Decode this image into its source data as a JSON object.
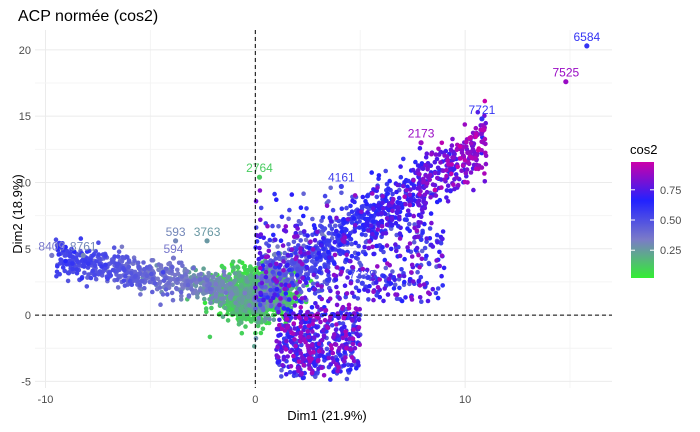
{
  "chart_data": {
    "type": "scatter",
    "title": "ACP normée (cos2)",
    "xlabel": "Dim1 (21.9%)",
    "ylabel": "Dim2 (18.9%)",
    "xlim": [
      -10.5,
      17
    ],
    "ylim": [
      -5.5,
      21.5
    ],
    "x_ticks": [
      -10,
      0,
      10
    ],
    "y_ticks": [
      -5,
      0,
      5,
      10,
      15,
      20
    ],
    "grid": true,
    "reference_lines": {
      "x": 0,
      "y": 0,
      "style": "dashed"
    },
    "color_variable": "cos2",
    "legend": {
      "title": "cos2",
      "position": "right",
      "ticks": [
        "0.25",
        "0.50",
        "0.75"
      ],
      "gradient": [
        "#33ee33",
        "#7b7bc8",
        "#2222ff",
        "#cc00aa"
      ]
    },
    "labeled_points": [
      {
        "label": "6584",
        "x": 15.8,
        "y": 20.3,
        "cos2": 0.6
      },
      {
        "label": "7525",
        "x": 14.8,
        "y": 17.6,
        "cos2": 0.9
      },
      {
        "label": "7721",
        "x": 10.8,
        "y": 14.8,
        "cos2": 0.6
      },
      {
        "label": "2173",
        "x": 7.9,
        "y": 13.0,
        "cos2": 0.9
      },
      {
        "label": "2764",
        "x": 0.2,
        "y": 10.4,
        "cos2": 0.1
      },
      {
        "label": "4161",
        "x": 4.1,
        "y": 9.7,
        "cos2": 0.55
      },
      {
        "label": "7338",
        "x": 5.1,
        "y": 2.4,
        "cos2": 0.55
      },
      {
        "label": "8409",
        "x": -9.7,
        "y": 4.5,
        "cos2": 0.35
      },
      {
        "label": "8761",
        "x": -8.2,
        "y": 4.5,
        "cos2": 0.3
      },
      {
        "label": "593",
        "x": -3.8,
        "y": 5.6,
        "cos2": 0.3
      },
      {
        "label": "3763",
        "x": -2.3,
        "y": 5.6,
        "cos2": 0.25
      },
      {
        "label": "594",
        "x": -3.9,
        "y": 4.3,
        "cos2": 0.35
      }
    ]
  }
}
